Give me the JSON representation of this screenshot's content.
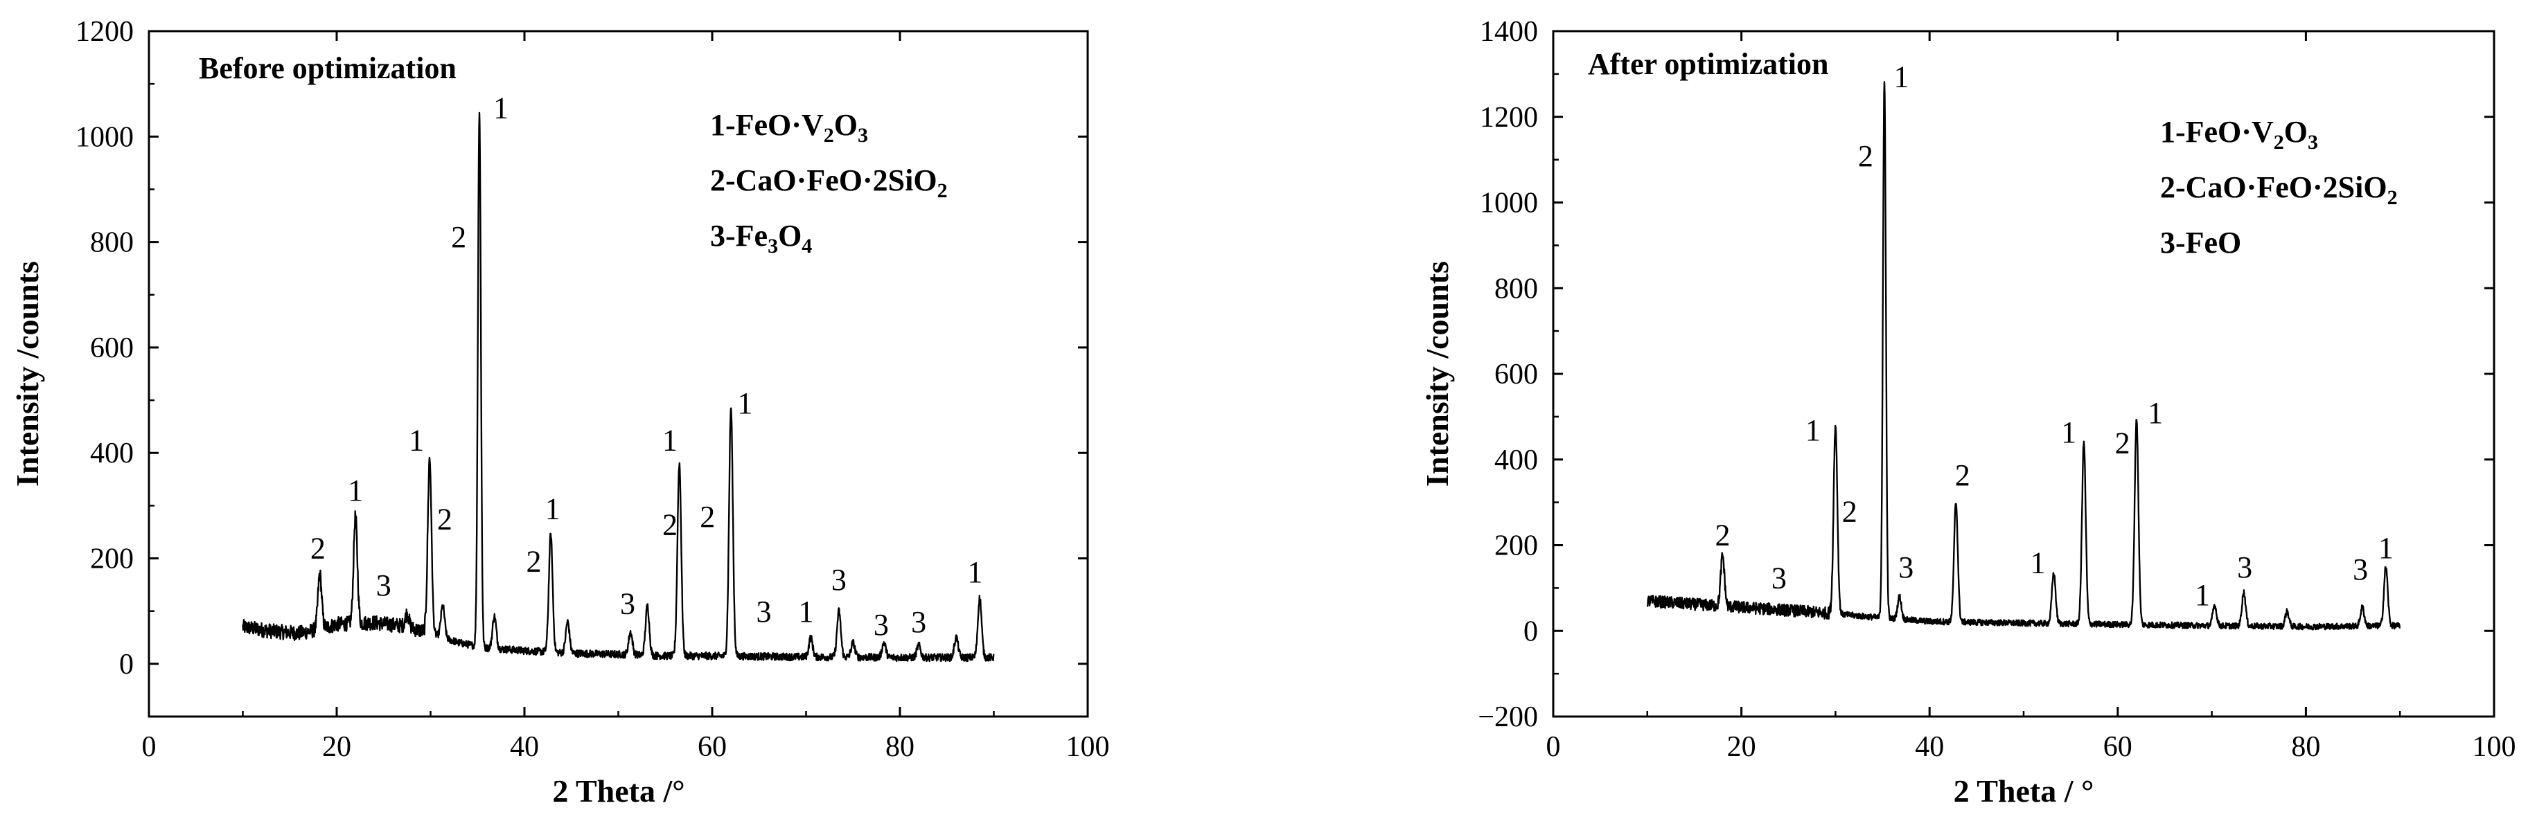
{
  "chart_data": [
    {
      "type": "line",
      "title": "Before optimization",
      "xlabel": "2 Theta /°",
      "ylabel": "Intensity /counts",
      "xlim": [
        0,
        100
      ],
      "ylim": [
        -100,
        1200
      ],
      "x_ticks": [
        "0",
        "20",
        "40",
        "60",
        "80",
        "100"
      ],
      "y_ticks": [
        "0",
        "200",
        "400",
        "600",
        "800",
        "1000",
        "1200"
      ],
      "grid": false,
      "legend_position": "top-right",
      "legend": [
        {
          "index": "1",
          "formula": [
            {
              "t": "1-FeO·V"
            },
            {
              "t": "2",
              "sub": true
            },
            {
              "t": "O"
            },
            {
              "t": "3",
              "sub": true
            }
          ]
        },
        {
          "index": "2",
          "formula": [
            {
              "t": "2-CaO·FeO·2SiO"
            },
            {
              "t": "2",
              "sub": true
            }
          ]
        },
        {
          "index": "3",
          "formula": [
            {
              "t": "3-Fe"
            },
            {
              "t": "3",
              "sub": true
            },
            {
              "t": "O"
            },
            {
              "t": "4",
              "sub": true
            }
          ]
        }
      ],
      "baseline": [
        [
          10,
          70
        ],
        [
          13,
          62
        ],
        [
          16,
          58
        ],
        [
          18,
          65
        ],
        [
          20,
          75
        ],
        [
          24,
          78
        ],
        [
          27,
          72
        ],
        [
          30,
          58
        ],
        [
          33,
          40
        ],
        [
          36,
          30
        ],
        [
          40,
          25
        ],
        [
          45,
          20
        ],
        [
          50,
          18
        ],
        [
          55,
          15
        ],
        [
          60,
          15
        ],
        [
          70,
          13
        ],
        [
          80,
          12
        ],
        [
          90,
          12
        ]
      ],
      "peaks": [
        {
          "x": 18.2,
          "y": 170
        },
        {
          "x": 22.0,
          "y": 280
        },
        {
          "x": 27.5,
          "y": 95
        },
        {
          "x": 29.9,
          "y": 390
        },
        {
          "x": 31.3,
          "y": 110
        },
        {
          "x": 35.2,
          "y": 1045
        },
        {
          "x": 36.8,
          "y": 90
        },
        {
          "x": 42.8,
          "y": 245
        },
        {
          "x": 44.6,
          "y": 80
        },
        {
          "x": 51.3,
          "y": 60
        },
        {
          "x": 53.1,
          "y": 110
        },
        {
          "x": 56.5,
          "y": 380
        },
        {
          "x": 62.0,
          "y": 485
        },
        {
          "x": 70.5,
          "y": 50
        },
        {
          "x": 73.5,
          "y": 100
        },
        {
          "x": 75.0,
          "y": 40
        },
        {
          "x": 78.3,
          "y": 40
        },
        {
          "x": 82.0,
          "y": 35
        },
        {
          "x": 86.0,
          "y": 50
        },
        {
          "x": 88.5,
          "y": 125
        }
      ],
      "annotations": [
        {
          "text": "1",
          "x": 37.5,
          "y": 1035
        },
        {
          "text": "2",
          "x": 33.0,
          "y": 790
        },
        {
          "text": "2",
          "x": 18.0,
          "y": 200
        },
        {
          "text": "1",
          "x": 22.0,
          "y": 310
        },
        {
          "text": "3",
          "x": 25.0,
          "y": 130
        },
        {
          "text": "1",
          "x": 28.5,
          "y": 405
        },
        {
          "text": "2",
          "x": 31.5,
          "y": 255
        },
        {
          "text": "2",
          "x": 41.0,
          "y": 175
        },
        {
          "text": "1",
          "x": 43.0,
          "y": 275
        },
        {
          "text": "3",
          "x": 51.0,
          "y": 95
        },
        {
          "text": "1",
          "x": 55.5,
          "y": 405
        },
        {
          "text": "2",
          "x": 55.5,
          "y": 245
        },
        {
          "text": "2",
          "x": 59.5,
          "y": 260
        },
        {
          "text": "1",
          "x": 63.5,
          "y": 475
        },
        {
          "text": "3",
          "x": 65.5,
          "y": 80
        },
        {
          "text": "1",
          "x": 70.0,
          "y": 80
        },
        {
          "text": "3",
          "x": 73.5,
          "y": 140
        },
        {
          "text": "3",
          "x": 78.0,
          "y": 55
        },
        {
          "text": "3",
          "x": 82.0,
          "y": 60
        },
        {
          "text": "1",
          "x": 88.0,
          "y": 155
        }
      ]
    },
    {
      "type": "line",
      "title": "After optimization",
      "xlabel": "2 Theta / °",
      "ylabel": "Intensity /counts",
      "xlim": [
        0,
        100
      ],
      "ylim": [
        -200,
        1400
      ],
      "x_ticks": [
        "0",
        "20",
        "40",
        "60",
        "80",
        "100"
      ],
      "y_ticks": [
        "-200",
        "0",
        "200",
        "400",
        "600",
        "800",
        "1000",
        "1200",
        "1400"
      ],
      "grid": false,
      "legend_position": "top-right",
      "legend": [
        {
          "index": "1",
          "formula": [
            {
              "t": "1-FeO·V"
            },
            {
              "t": "2",
              "sub": true
            },
            {
              "t": "O"
            },
            {
              "t": "3",
              "sub": true
            }
          ]
        },
        {
          "index": "2",
          "formula": [
            {
              "t": "2-CaO·FeO·2SiO"
            },
            {
              "t": "2",
              "sub": true
            }
          ]
        },
        {
          "index": "3",
          "formula": [
            {
              "t": "3-FeO"
            }
          ]
        }
      ],
      "baseline": [
        [
          10,
          70
        ],
        [
          15,
          62
        ],
        [
          20,
          55
        ],
        [
          25,
          48
        ],
        [
          30,
          40
        ],
        [
          35,
          30
        ],
        [
          40,
          22
        ],
        [
          50,
          18
        ],
        [
          60,
          15
        ],
        [
          70,
          12
        ],
        [
          80,
          10
        ],
        [
          90,
          12
        ]
      ],
      "peaks": [
        {
          "x": 18.0,
          "y": 175
        },
        {
          "x": 30.0,
          "y": 480
        },
        {
          "x": 35.2,
          "y": 1280
        },
        {
          "x": 36.8,
          "y": 80
        },
        {
          "x": 42.8,
          "y": 300
        },
        {
          "x": 53.2,
          "y": 135
        },
        {
          "x": 56.4,
          "y": 440
        },
        {
          "x": 62.0,
          "y": 495
        },
        {
          "x": 70.3,
          "y": 60
        },
        {
          "x": 73.4,
          "y": 90
        },
        {
          "x": 78.0,
          "y": 45
        },
        {
          "x": 86.0,
          "y": 55
        },
        {
          "x": 88.5,
          "y": 150
        }
      ],
      "annotations": [
        {
          "text": "1",
          "x": 37.0,
          "y": 1270
        },
        {
          "text": "2",
          "x": 33.2,
          "y": 1085
        },
        {
          "text": "2",
          "x": 18.0,
          "y": 200
        },
        {
          "text": "3",
          "x": 24.0,
          "y": 100
        },
        {
          "text": "1",
          "x": 27.6,
          "y": 445
        },
        {
          "text": "2",
          "x": 31.5,
          "y": 255
        },
        {
          "text": "3",
          "x": 37.5,
          "y": 125
        },
        {
          "text": "2",
          "x": 43.5,
          "y": 340
        },
        {
          "text": "1",
          "x": 51.5,
          "y": 135
        },
        {
          "text": "1",
          "x": 54.8,
          "y": 440
        },
        {
          "text": "2",
          "x": 60.5,
          "y": 415
        },
        {
          "text": "1",
          "x": 64.0,
          "y": 485
        },
        {
          "text": "1",
          "x": 69.0,
          "y": 60
        },
        {
          "text": "3",
          "x": 73.5,
          "y": 125
        },
        {
          "text": "3",
          "x": 85.8,
          "y": 120
        },
        {
          "text": "1",
          "x": 88.5,
          "y": 170
        }
      ]
    }
  ]
}
